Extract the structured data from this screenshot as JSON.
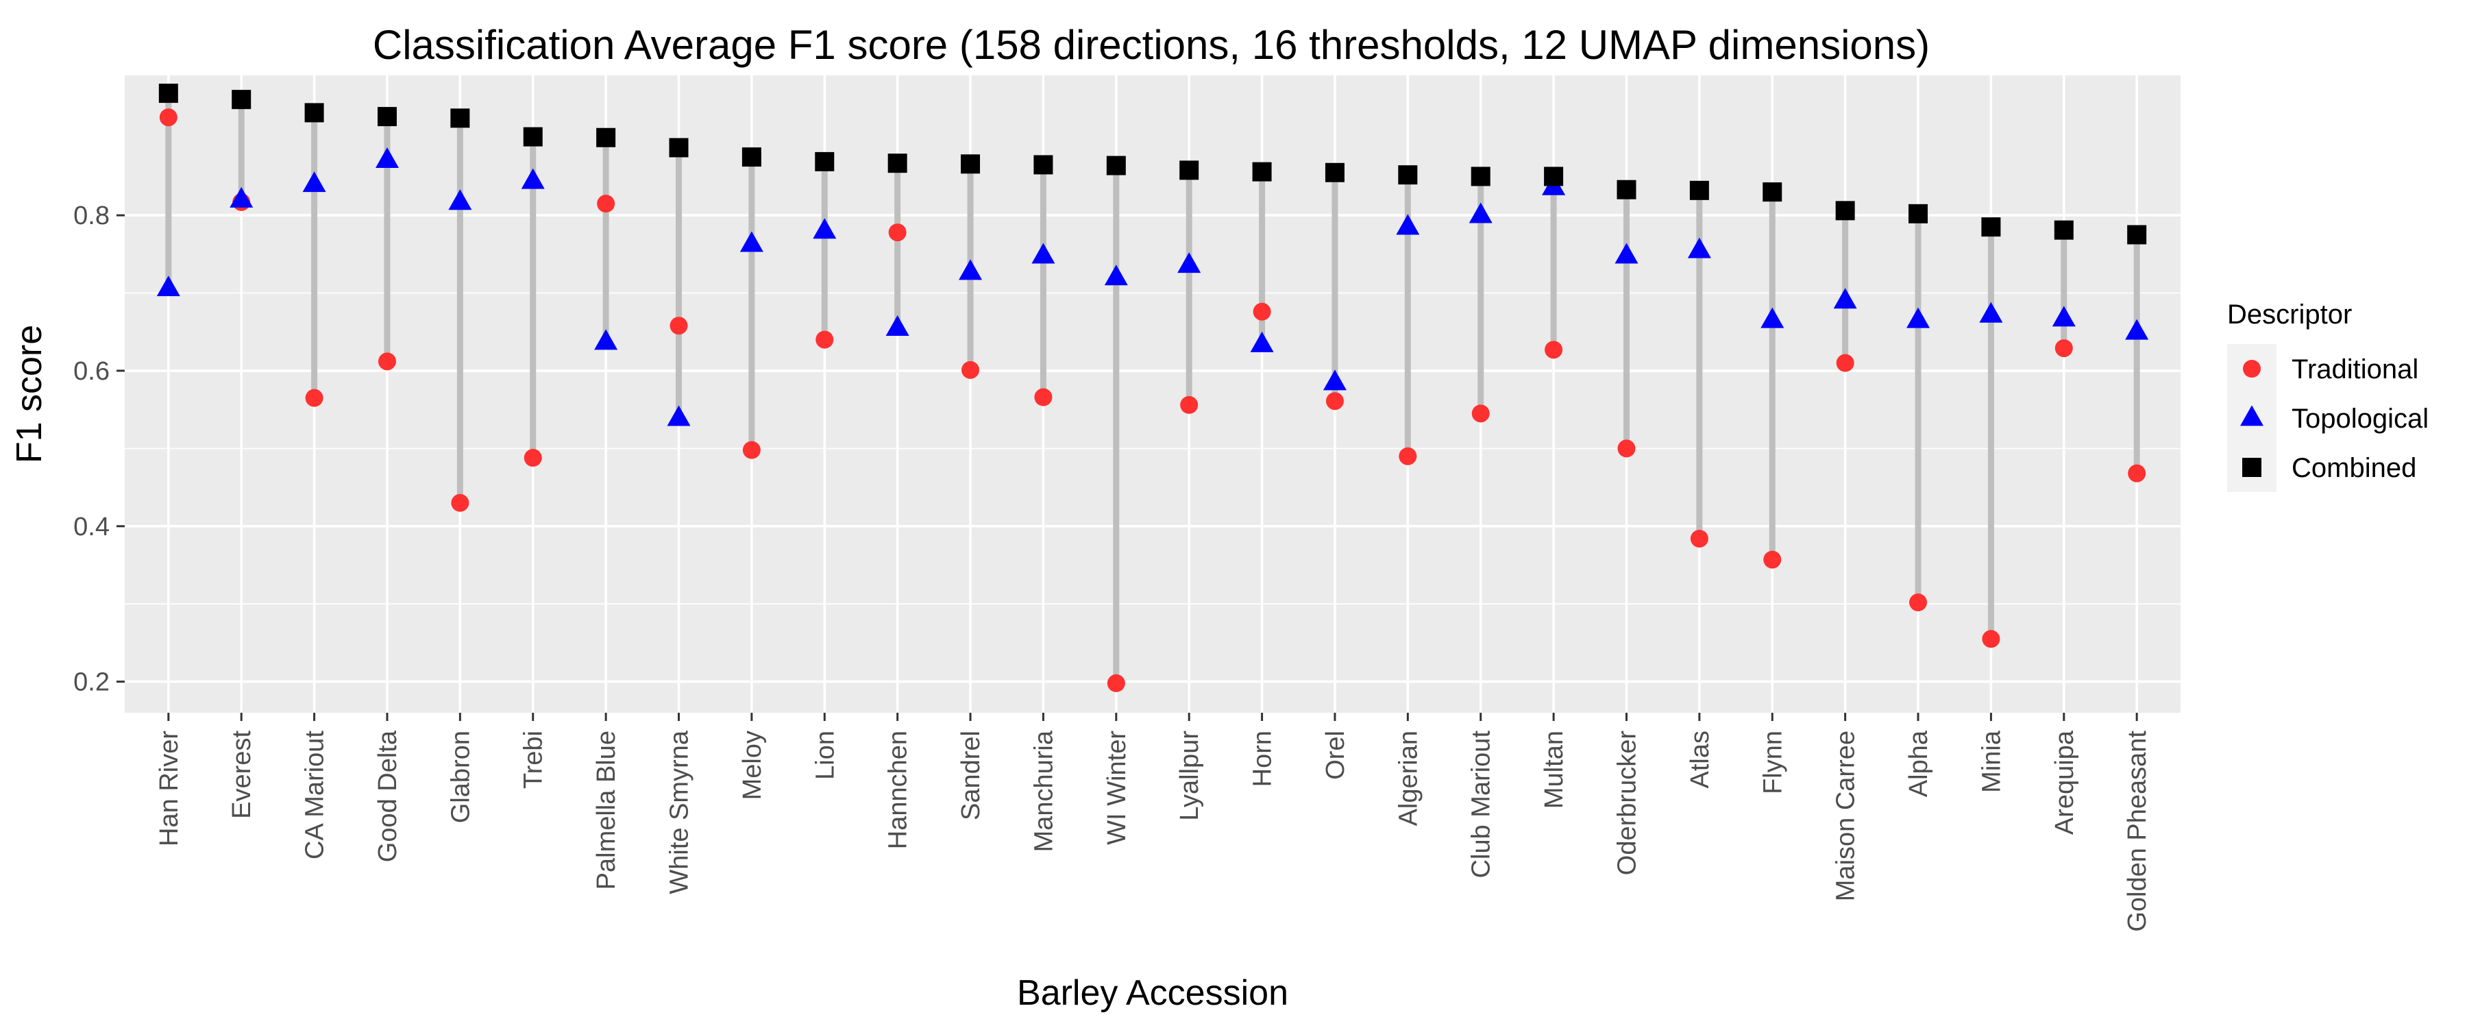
{
  "chart_data": {
    "type": "scatter",
    "title": "Classification Average F1 score (158 directions, 16 thresholds, 12 UMAP dimensions)",
    "xlabel": "Barley Accession",
    "ylabel": "F1 score",
    "ylim": [
      0.16,
      0.98
    ],
    "yticks": [
      "0.2",
      "0.4",
      "0.6",
      "0.8"
    ],
    "ytick_values": [
      0.2,
      0.4,
      0.6,
      0.8
    ],
    "grid": true,
    "legend": {
      "title": "Descriptor",
      "placement": "right"
    },
    "categories": [
      "Han River",
      "Everest",
      "CA Mariout",
      "Good Delta",
      "Glabron",
      "Trebi",
      "Palmella Blue",
      "White Smyrna",
      "Meloy",
      "Lion",
      "Hannchen",
      "Sandrel",
      "Manchuria",
      "WI Winter",
      "Lyallpur",
      "Horn",
      "Orel",
      "Algerian",
      "Club Mariout",
      "Multan",
      "Oderbrucker",
      "Atlas",
      "Flynn",
      "Maison Carree",
      "Alpha",
      "Minia",
      "Arequipa",
      "Golden Pheasant"
    ],
    "series": [
      {
        "name": "Traditional",
        "color": "#ff3030",
        "marker": "circle",
        "values": [
          0.926,
          0.817,
          0.565,
          0.612,
          0.43,
          0.488,
          0.815,
          0.658,
          0.498,
          0.64,
          0.778,
          0.601,
          0.566,
          0.198,
          0.556,
          0.676,
          0.561,
          0.49,
          0.545,
          0.627,
          0.5,
          0.384,
          0.357,
          0.61,
          0.302,
          0.255,
          0.629,
          0.468
        ]
      },
      {
        "name": "Topological",
        "color": "#0000ff",
        "marker": "triangle",
        "values": [
          0.706,
          0.82,
          0.84,
          0.871,
          0.817,
          0.844,
          0.637,
          0.539,
          0.763,
          0.78,
          0.655,
          0.727,
          0.748,
          0.72,
          0.736,
          0.634,
          0.585,
          0.785,
          0.8,
          0.836,
          0.748,
          0.755,
          0.665,
          0.69,
          0.665,
          0.672,
          0.667,
          0.65
        ]
      },
      {
        "name": "Combined",
        "color": "#000000",
        "marker": "square",
        "values": [
          0.957,
          0.949,
          0.932,
          0.927,
          0.925,
          0.901,
          0.9,
          0.887,
          0.875,
          0.869,
          0.867,
          0.866,
          0.865,
          0.864,
          0.858,
          0.856,
          0.855,
          0.852,
          0.85,
          0.85,
          0.833,
          0.832,
          0.83,
          0.806,
          0.802,
          0.785,
          0.781,
          0.775
        ]
      }
    ]
  }
}
